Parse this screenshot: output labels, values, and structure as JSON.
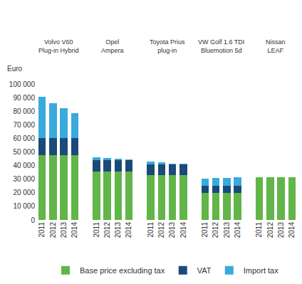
{
  "chart_data": {
    "type": "bar",
    "stacked": true,
    "y_label": "Euro",
    "groups": [
      "Volvo V60\nPlug-in Hybrid",
      "Opel\nAmpera",
      "Toyota Prius\nplug-in",
      "VW Golf 1.6 TDI\nBluemotion 5d",
      "Nissan\nLEAF"
    ],
    "categories": [
      "2011",
      "2012",
      "2013",
      "2014",
      null,
      "2011",
      "2012",
      "2013",
      "2014",
      null,
      "2011",
      "2012",
      "2013",
      "2014",
      null,
      "2011",
      "2012",
      "2013",
      "2014",
      null,
      "2011",
      "2012",
      "2013",
      "2014"
    ],
    "series": [
      {
        "name": "Base price excluding tax",
        "color": "#62b548",
        "values": [
          47500,
          47500,
          47500,
          47500,
          null,
          35500,
          35500,
          35500,
          35500,
          null,
          33000,
          33000,
          33000,
          33000,
          null,
          20000,
          20000,
          20000,
          20000,
          null,
          31500,
          31500,
          31500,
          31500
        ]
      },
      {
        "name": "VAT",
        "color": "#1b4a7a",
        "values": [
          12500,
          12500,
          12500,
          12500,
          null,
          8500,
          8500,
          8500,
          8500,
          null,
          8000,
          8000,
          8000,
          8000,
          null,
          5000,
          5000,
          5000,
          5000,
          null,
          0,
          0,
          0,
          0
        ]
      },
      {
        "name": "Import tax",
        "color": "#3aa9dc",
        "values": [
          30500,
          26000,
          22000,
          18500,
          null,
          2000,
          1500,
          800,
          600,
          null,
          1800,
          1200,
          600,
          600,
          null,
          5500,
          5700,
          6000,
          6500,
          null,
          0,
          0,
          0,
          0
        ]
      }
    ],
    "ylim": [
      0,
      100000
    ],
    "yticks": [
      0,
      {
        "value": 10000,
        "label": "10 000"
      },
      {
        "value": 20000,
        "label": "20 000"
      },
      {
        "value": 30000,
        "label": "30 000"
      },
      {
        "value": 40000,
        "label": "40 000"
      },
      {
        "value": 50000,
        "label": "50 000"
      },
      {
        "value": 60000,
        "label": "60 000"
      },
      {
        "value": 70000,
        "label": "70 000"
      },
      {
        "value": 80000,
        "label": "80 000"
      },
      {
        "value": 90000,
        "label": "90 000"
      },
      {
        "value": 100000,
        "label": "100 000"
      }
    ],
    "grid": false,
    "legend": "bottom"
  }
}
